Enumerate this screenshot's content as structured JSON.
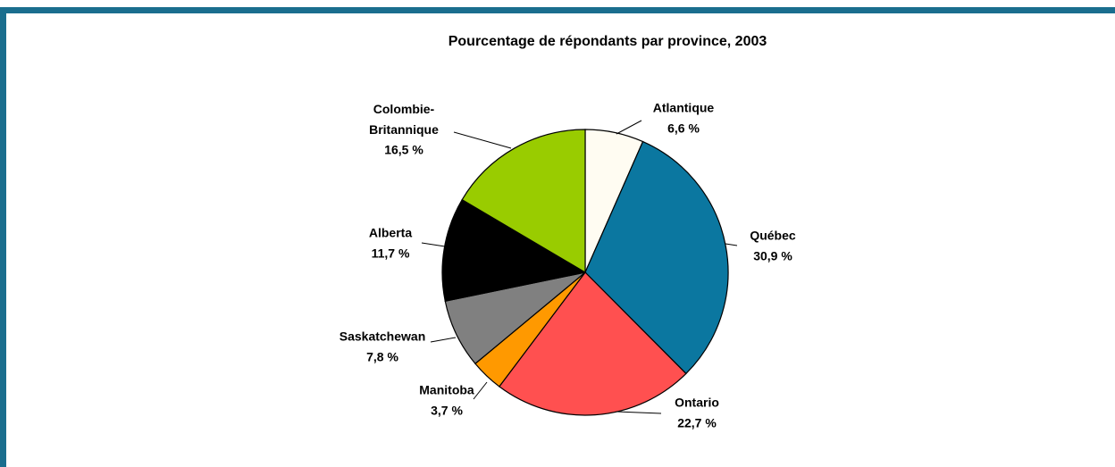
{
  "chart_data": {
    "type": "pie",
    "title": "Pourcentage de répondants par province, 2003",
    "categories": [
      "Atlantique",
      "Québec",
      "Ontario",
      "Manitoba",
      "Saskatchewan",
      "Alberta",
      "Colombie-Britannique"
    ],
    "values": [
      6.6,
      30.9,
      22.7,
      3.7,
      7.8,
      11.7,
      16.5
    ],
    "value_labels": [
      "6,6 %",
      "30,9 %",
      "22,7 %",
      "3,7 %",
      "7,8 %",
      "11,7 %",
      "16,5 %"
    ],
    "colors": [
      "#fffcf2",
      "#0b77a0",
      "#ff5050",
      "#ff9900",
      "#808080",
      "#000000",
      "#99cc00"
    ]
  }
}
